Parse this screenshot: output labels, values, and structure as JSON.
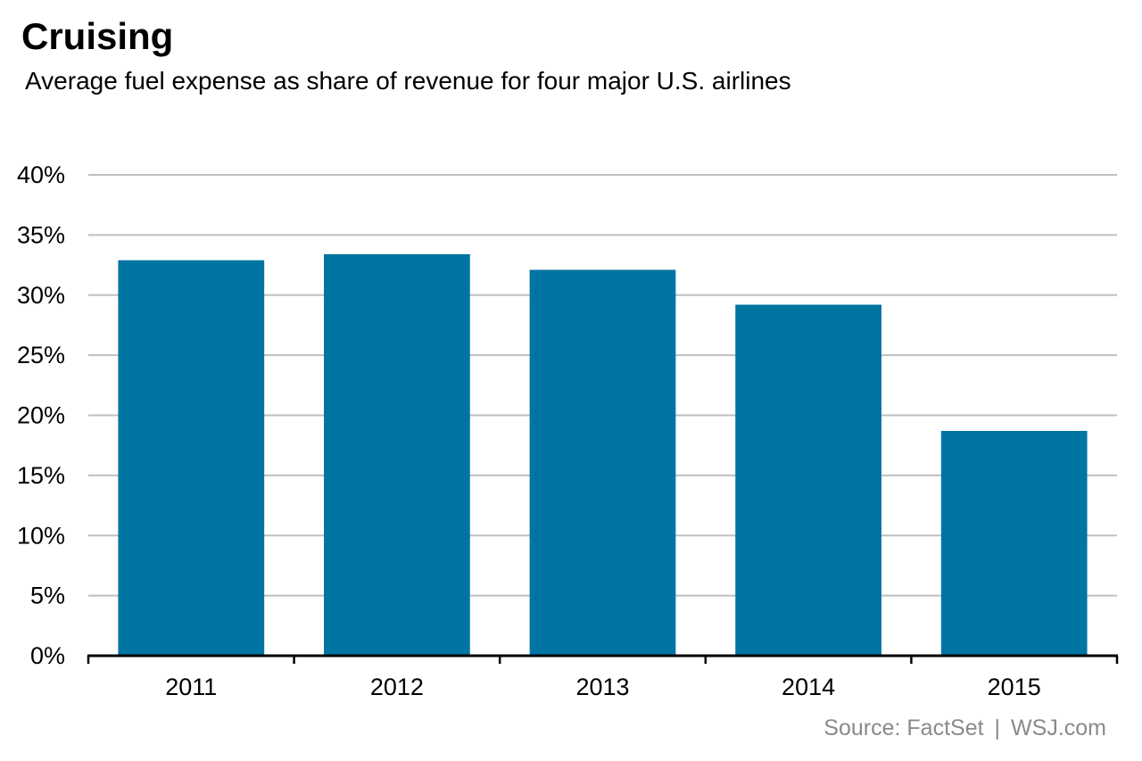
{
  "chart_data": {
    "type": "bar",
    "title": "Cruising",
    "subtitle": "Average fuel expense as share of revenue for four major U.S. airlines",
    "categories": [
      "2011",
      "2012",
      "2013",
      "2014",
      "2015"
    ],
    "values": [
      32.9,
      33.4,
      32.1,
      29.2,
      18.7
    ],
    "unit": "%",
    "ylim": [
      0,
      40
    ],
    "yticks": [
      0,
      5,
      10,
      15,
      20,
      25,
      30,
      35,
      40
    ],
    "ytick_labels": [
      "0%",
      "5%",
      "10%",
      "15%",
      "20%",
      "25%",
      "30%",
      "35%",
      "40%"
    ],
    "xlabel": "",
    "ylabel": "",
    "grid": true,
    "legend": "none",
    "colors": {
      "bar": "#0074a2",
      "grid": "#bfbfbf",
      "axis": "#000000",
      "source": "#8a8a8a"
    }
  },
  "source": {
    "text": "Source: FactSet",
    "separator": "|",
    "publisher": "WSJ.com"
  }
}
